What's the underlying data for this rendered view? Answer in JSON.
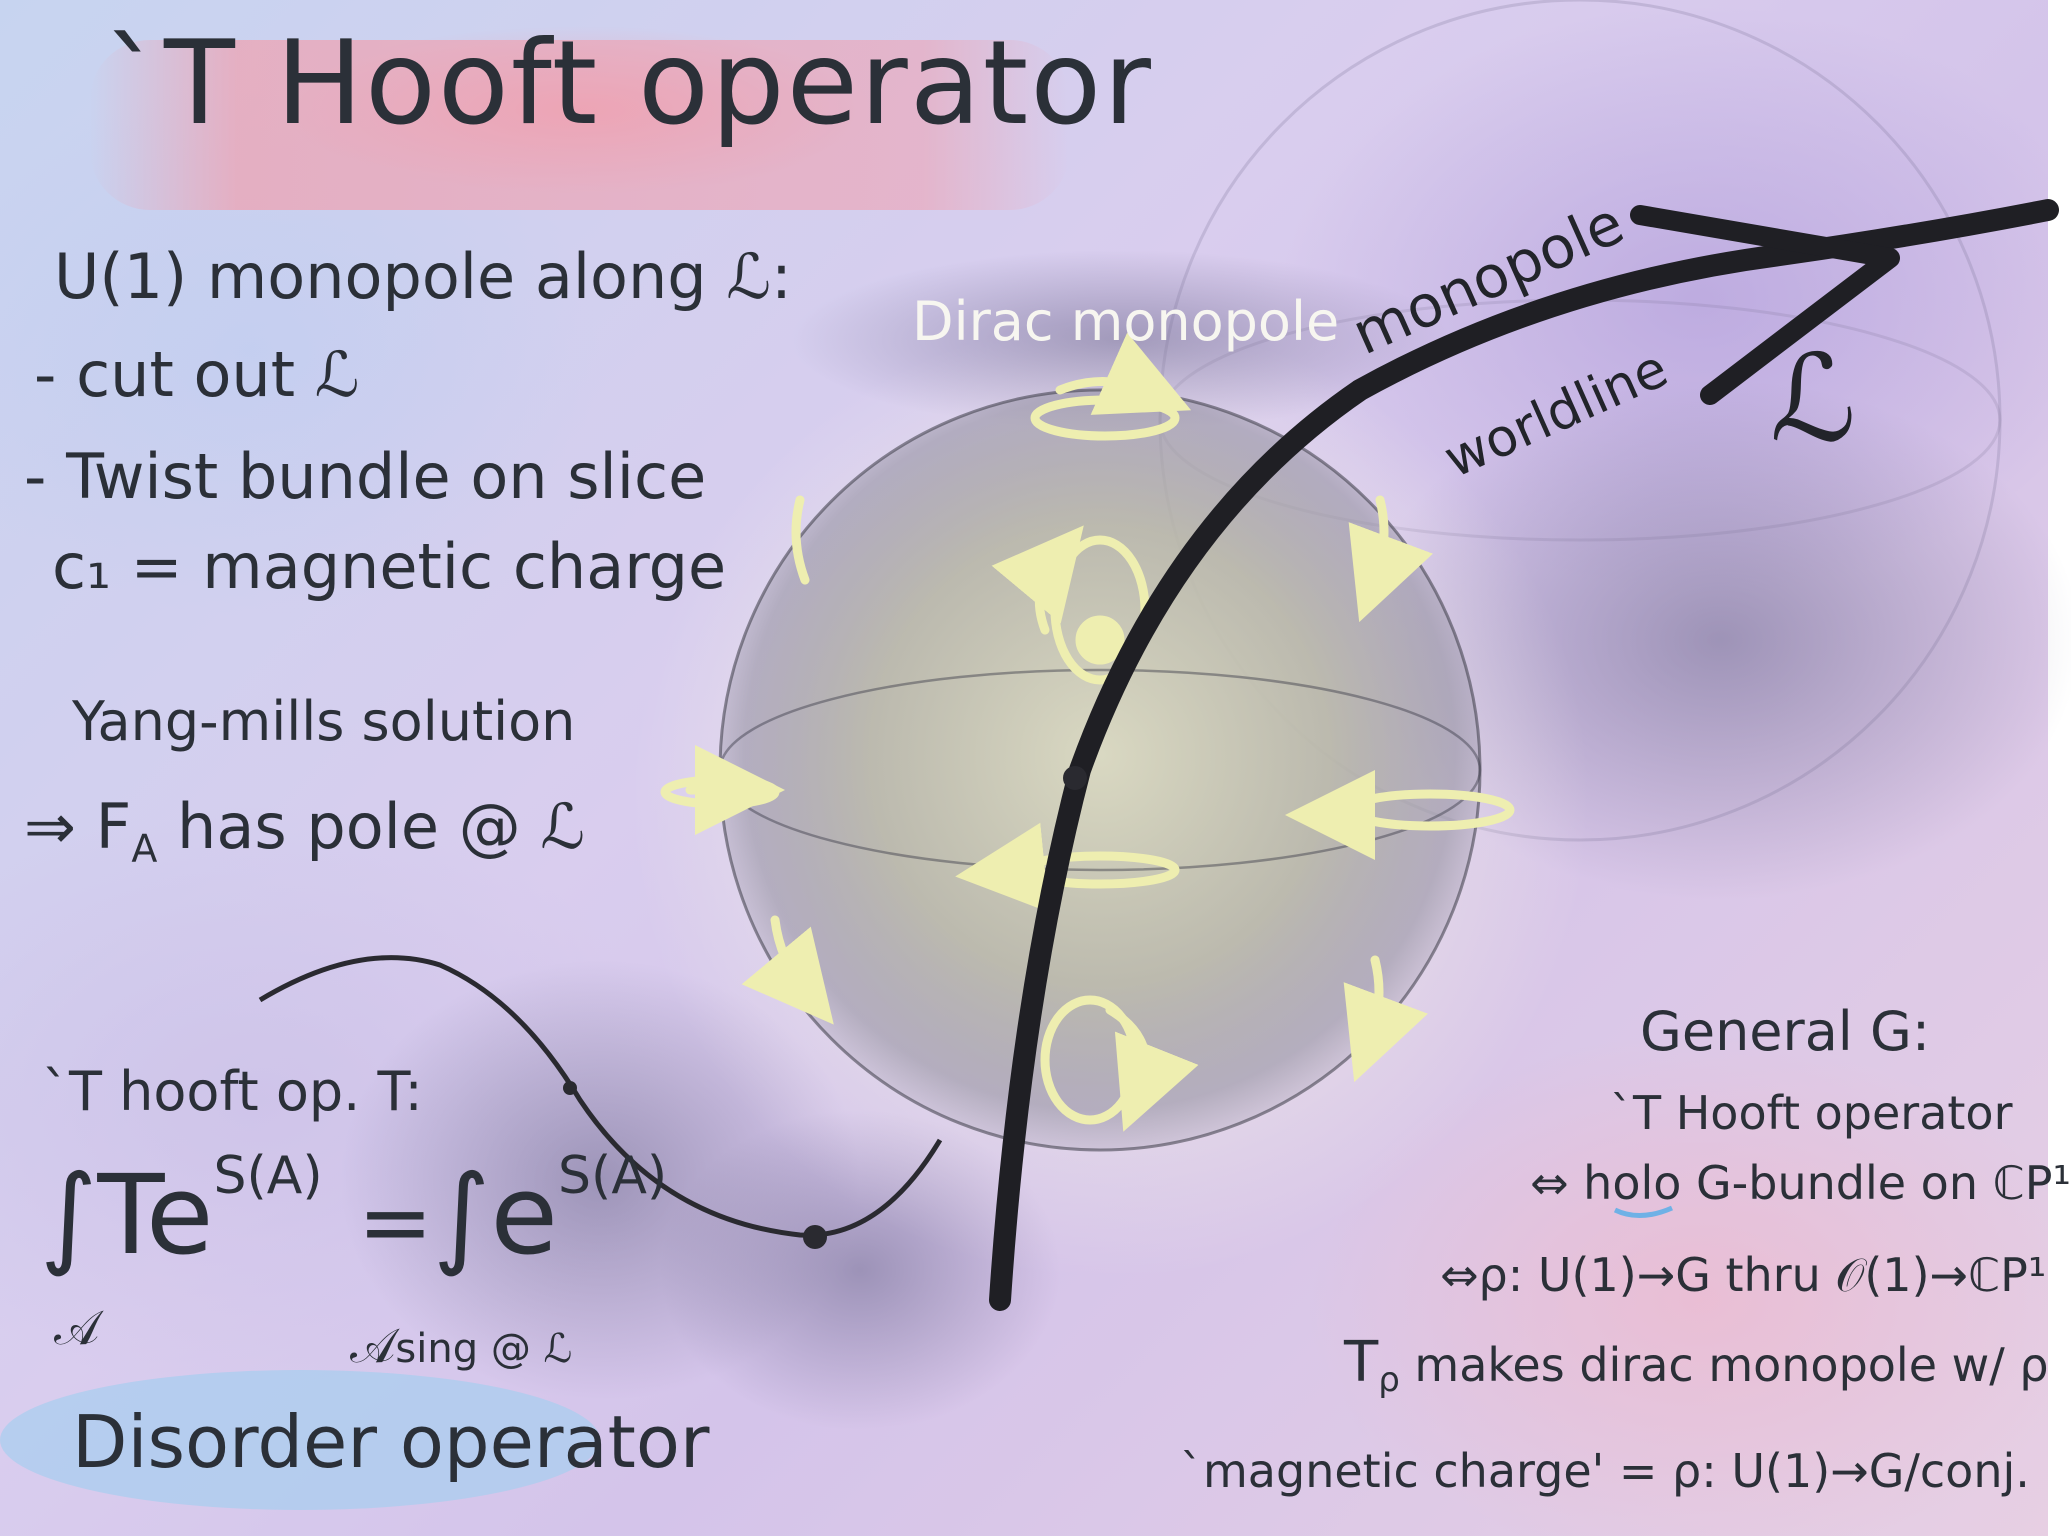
{
  "title": "`T Hooft operator",
  "left_notes": {
    "heading": "U(1) monopole along ℒ:",
    "items": [
      "- cut out ℒ",
      "- Twist bundle on slice",
      "c₁ = magnetic charge"
    ],
    "ym_heading": "Yang-mills solution",
    "ym_result": "⇒ F",
    "ym_result_sub": "A",
    "ym_result_tail": " has pole @ ℒ",
    "op_heading": "`T hooft op. T:",
    "formula": {
      "lhs_integral": "∫",
      "lhs_sub": "𝒜",
      "lhs_body": "Te",
      "lhs_exp": "S(A)",
      "equals": "=",
      "rhs_integral": "∫",
      "rhs_sub": "𝒜",
      "rhs_sub_tail": "sing @ ℒ",
      "rhs_body": "e",
      "rhs_exp": "S(A)"
    },
    "footer": "Disorder operator"
  },
  "diagram": {
    "sphere_label": "Dirac monopole",
    "worldline_label_1": "monopole",
    "worldline_label_2": "worldline",
    "line_label": "ℒ"
  },
  "right_notes": {
    "heading": "General G:",
    "line1": "`T Hooft operator",
    "line2_arrow": "⇔ ",
    "line2_holo": "holo",
    "line2_rest": " G-bundle on ℂP¹",
    "line3": "⇔ρ: U(1)→G  thru  𝒪(1)→ℂP¹",
    "line4_T": "T",
    "line4_sub": "ρ",
    "line4_rest": " makes dirac monopole w/ ρ",
    "line5": "`magnetic charge' = ρ: U(1)→G/conj."
  },
  "colors": {
    "ink": "#2b3038",
    "field_lines": "#eeeeb0",
    "sphere": "#b8b7a0",
    "title_highlight": "#f0a0af",
    "footer_highlight": "#a9cdef"
  }
}
